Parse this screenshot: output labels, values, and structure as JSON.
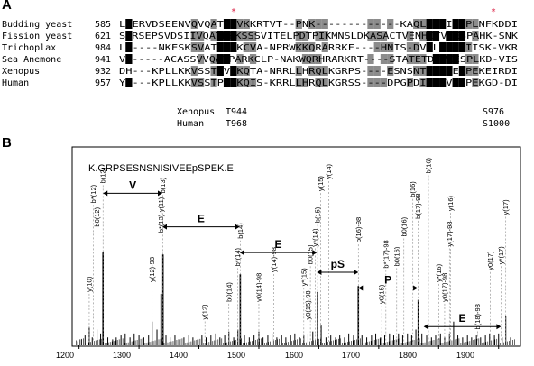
{
  "panels": {
    "a": "A",
    "b": "B"
  },
  "alignment": {
    "rows": [
      {
        "species": "Budding yeast",
        "start": "585",
        "seq": "LHERVDSEENVQVQATPAVKKRTVT--PNK-------------KAQLQSIIESPLNFKDDI"
      },
      {
        "species": "Fission yeast",
        "start": "621",
        "seq": "SKRSEPSVDSIIVQATPRKSSSVITELPDTPIKMNSLDKASACTVENHITVTESPAHK-SNK"
      },
      {
        "species": "Trichoplax",
        "start": "984",
        "seq": "LR----NKESKSVATPLKKCVA-NPRWKKQRARRKF----HNIS-DVCLRESPIISK-VKR"
      },
      {
        "species": "Sea Anemone",
        "start": "941",
        "seq": "VA-----ACASSVVQATPARKCLP-NAKWQRHRARKRT----STATETDTVKESPLKD-VIS"
      },
      {
        "species": "Xenopus",
        "start": "932",
        "seq": "DH---KPLLKKVSSTPVHKQTA-NRRLLHRQLKGRPS----ESNSNTSTVVESPEKEIRDI"
      },
      {
        "species": "Human",
        "start": "957",
        "seq": "YH---KPLLKKVSSTPVHKQIS-KRRLLHRQLKGRSS----DPGPDIDVVVESPEKGD-DI"
      }
    ],
    "stars": [
      "*",
      "*"
    ],
    "sites": [
      {
        "species": "Xenopus",
        "site1": "T944",
        "site2": "S976"
      },
      {
        "species": "Human",
        "site1": "T968",
        "site2": "S1000"
      }
    ]
  },
  "spectrum": {
    "peptide": "K.GRPSESNSNISIVEEpSPEK.E",
    "xticks": [
      "1200",
      "1300",
      "1400",
      "1500",
      "1600",
      "1700",
      "1800",
      "1900"
    ],
    "gaps": [
      {
        "label": "V",
        "from": 1240,
        "to": 1339,
        "y": 0.77
      },
      {
        "label": "E",
        "from": 1339,
        "to": 1468,
        "y": 0.6
      },
      {
        "label": "E",
        "from": 1468,
        "to": 1597,
        "y": 0.47
      },
      {
        "label": "pS",
        "from": 1597,
        "to": 1666,
        "y": 0.37
      },
      {
        "label": "P",
        "from": 1666,
        "to": 1765,
        "y": 0.29
      },
      {
        "label": "E",
        "from": 1775,
        "to": 1904,
        "y": 0.095
      }
    ]
  },
  "chart_data": {
    "type": "bar",
    "title": "K.GRPSESNSNISIVEEpSPEK.E",
    "xlabel": "",
    "ylabel": "",
    "xlim": [
      1190,
      1935
    ],
    "series": [
      {
        "name": "",
        "points": [
          {
            "x": 1198,
            "y": 0.02,
            "label": ""
          },
          {
            "x": 1204,
            "y": 0.03,
            "label": ""
          },
          {
            "x": 1210,
            "y": 0.05,
            "label": ""
          },
          {
            "x": 1217,
            "y": 0.09,
            "label": "y(10)"
          },
          {
            "x": 1222,
            "y": 0.04,
            "label": ""
          },
          {
            "x": 1230,
            "y": 0.08,
            "label": "b0(12)"
          },
          {
            "x": 1236,
            "y": 0.06,
            "label": ""
          },
          {
            "x": 1240,
            "y": 0.47,
            "label": "b(12)"
          },
          {
            "x": 1248,
            "y": 0.04,
            "label": ""
          },
          {
            "x": 1256,
            "y": 0.03,
            "label": ""
          },
          {
            "x": 1262,
            "y": 0.04,
            "label": ""
          },
          {
            "x": 1270,
            "y": 0.05,
            "label": ""
          },
          {
            "x": 1277,
            "y": 0.06,
            "label": ""
          },
          {
            "x": 1285,
            "y": 0.04,
            "label": ""
          },
          {
            "x": 1292,
            "y": 0.06,
            "label": ""
          },
          {
            "x": 1300,
            "y": 0.05,
            "label": ""
          },
          {
            "x": 1308,
            "y": 0.04,
            "label": ""
          },
          {
            "x": 1316,
            "y": 0.05,
            "label": ""
          },
          {
            "x": 1322,
            "y": 0.12,
            "label": "y(12)-98"
          },
          {
            "x": 1330,
            "y": 0.08,
            "label": ""
          },
          {
            "x": 1337,
            "y": 0.26,
            "label": "b*(13)"
          },
          {
            "x": 1340,
            "y": 0.46,
            "label": "b(13)"
          },
          {
            "x": 1345,
            "y": 0.05,
            "label": ""
          },
          {
            "x": 1352,
            "y": 0.04,
            "label": ""
          },
          {
            "x": 1360,
            "y": 0.05,
            "label": ""
          },
          {
            "x": 1368,
            "y": 0.03,
            "label": ""
          },
          {
            "x": 1375,
            "y": 0.04,
            "label": ""
          },
          {
            "x": 1383,
            "y": 0.05,
            "label": ""
          },
          {
            "x": 1390,
            "y": 0.04,
            "label": ""
          },
          {
            "x": 1398,
            "y": 0.03,
            "label": ""
          },
          {
            "x": 1405,
            "y": 0.05,
            "label": ""
          },
          {
            "x": 1412,
            "y": 0.04,
            "label": ""
          },
          {
            "x": 1420,
            "y": 0.05,
            "label": ""
          },
          {
            "x": 1428,
            "y": 0.06,
            "label": ""
          },
          {
            "x": 1435,
            "y": 0.04,
            "label": ""
          },
          {
            "x": 1443,
            "y": 0.05,
            "label": ""
          },
          {
            "x": 1450,
            "y": 0.07,
            "label": "b0(14)"
          },
          {
            "x": 1458,
            "y": 0.04,
            "label": ""
          },
          {
            "x": 1465,
            "y": 0.08,
            "label": "b*(14)"
          },
          {
            "x": 1469,
            "y": 0.36,
            "label": "b(14)"
          },
          {
            "x": 1476,
            "y": 0.05,
            "label": ""
          },
          {
            "x": 1484,
            "y": 0.04,
            "label": ""
          },
          {
            "x": 1492,
            "y": 0.05,
            "label": ""
          },
          {
            "x": 1500,
            "y": 0.07,
            "label": "y0(14)-98"
          },
          {
            "x": 1507,
            "y": 0.04,
            "label": ""
          },
          {
            "x": 1515,
            "y": 0.05,
            "label": ""
          },
          {
            "x": 1522,
            "y": 0.06,
            "label": ""
          },
          {
            "x": 1530,
            "y": 0.04,
            "label": ""
          },
          {
            "x": 1538,
            "y": 0.05,
            "label": ""
          },
          {
            "x": 1545,
            "y": 0.04,
            "label": ""
          },
          {
            "x": 1553,
            "y": 0.05,
            "label": ""
          },
          {
            "x": 1560,
            "y": 0.06,
            "label": ""
          },
          {
            "x": 1568,
            "y": 0.04,
            "label": ""
          },
          {
            "x": 1575,
            "y": 0.05,
            "label": ""
          },
          {
            "x": 1582,
            "y": 0.06,
            "label": "y0(15)-98"
          },
          {
            "x": 1590,
            "y": 0.07,
            "label": ""
          },
          {
            "x": 1598,
            "y": 0.27,
            "label": "b(15)"
          },
          {
            "x": 1604,
            "y": 0.1,
            "label": ""
          },
          {
            "x": 1612,
            "y": 0.04,
            "label": ""
          },
          {
            "x": 1620,
            "y": 0.05,
            "label": ""
          },
          {
            "x": 1628,
            "y": 0.04,
            "label": ""
          },
          {
            "x": 1635,
            "y": 0.05,
            "label": ""
          },
          {
            "x": 1643,
            "y": 0.04,
            "label": ""
          },
          {
            "x": 1650,
            "y": 0.06,
            "label": ""
          },
          {
            "x": 1658,
            "y": 0.05,
            "label": ""
          },
          {
            "x": 1666,
            "y": 0.3,
            "label": "b(16)-98"
          },
          {
            "x": 1672,
            "y": 0.05,
            "label": ""
          },
          {
            "x": 1680,
            "y": 0.04,
            "label": ""
          },
          {
            "x": 1688,
            "y": 0.05,
            "label": ""
          },
          {
            "x": 1695,
            "y": 0.06,
            "label": ""
          },
          {
            "x": 1703,
            "y": 0.04,
            "label": ""
          },
          {
            "x": 1710,
            "y": 0.05,
            "label": ""
          },
          {
            "x": 1718,
            "y": 0.06,
            "label": ""
          },
          {
            "x": 1725,
            "y": 0.05,
            "label": ""
          },
          {
            "x": 1733,
            "y": 0.06,
            "label": ""
          },
          {
            "x": 1740,
            "y": 0.05,
            "label": ""
          },
          {
            "x": 1748,
            "y": 0.06,
            "label": ""
          },
          {
            "x": 1755,
            "y": 0.05,
            "label": ""
          },
          {
            "x": 1762,
            "y": 0.08,
            "label": ""
          },
          {
            "x": 1766,
            "y": 0.23,
            "label": "b(17)-98"
          },
          {
            "x": 1772,
            "y": 0.06,
            "label": ""
          },
          {
            "x": 1780,
            "y": 0.05,
            "label": ""
          },
          {
            "x": 1788,
            "y": 0.04,
            "label": ""
          },
          {
            "x": 1795,
            "y": 0.05,
            "label": ""
          },
          {
            "x": 1803,
            "y": 0.06,
            "label": ""
          },
          {
            "x": 1810,
            "y": 0.04,
            "label": ""
          },
          {
            "x": 1818,
            "y": 0.06,
            "label": ""
          },
          {
            "x": 1825,
            "y": 0.12,
            "label": ""
          },
          {
            "x": 1832,
            "y": 0.05,
            "label": ""
          },
          {
            "x": 1840,
            "y": 0.04,
            "label": ""
          },
          {
            "x": 1848,
            "y": 0.05,
            "label": ""
          },
          {
            "x": 1855,
            "y": 0.04,
            "label": ""
          },
          {
            "x": 1863,
            "y": 0.05,
            "label": ""
          },
          {
            "x": 1870,
            "y": 0.04,
            "label": ""
          },
          {
            "x": 1878,
            "y": 0.05,
            "label": ""
          },
          {
            "x": 1885,
            "y": 0.06,
            "label": ""
          },
          {
            "x": 1893,
            "y": 0.05,
            "label": ""
          },
          {
            "x": 1900,
            "y": 0.06,
            "label": ""
          },
          {
            "x": 1906,
            "y": 0.04,
            "label": ""
          },
          {
            "x": 1912,
            "y": 0.15,
            "label": ""
          },
          {
            "x": 1920,
            "y": 0.04,
            "label": ""
          }
        ]
      }
    ],
    "annotations": [
      {
        "text": "y(10)",
        "x": 1217,
        "y": 0.27
      },
      {
        "text": "b0(12)",
        "x": 1230,
        "y": 0.6
      },
      {
        "text": "b(12)",
        "x": 1240,
        "y": 0.82
      },
      {
        "text": "b*(12)",
        "x": 1224,
        "y": 0.72
      },
      {
        "text": "y(12)-98",
        "x": 1322,
        "y": 0.32
      },
      {
        "text": "b*(13)-y(11)",
        "x": 1337,
        "y": 0.57
      },
      {
        "text": "b(13)",
        "x": 1340,
        "y": 0.77
      },
      {
        "text": "y(12)",
        "x": 1410,
        "y": 0.13
      },
      {
        "text": "b0(14)",
        "x": 1450,
        "y": 0.22
      },
      {
        "text": "b*(14)",
        "x": 1465,
        "y": 0.4
      },
      {
        "text": "b(14)",
        "x": 1469,
        "y": 0.54
      },
      {
        "text": "y(14)-98",
        "x": 1525,
        "y": 0.37
      },
      {
        "text": "y0(14)-98",
        "x": 1500,
        "y": 0.22
      },
      {
        "text": "b0(15)",
        "x": 1586,
        "y": 0.41
      },
      {
        "text": "y*(15)",
        "x": 1575,
        "y": 0.3
      },
      {
        "text": "y0(15)-98",
        "x": 1582,
        "y": 0.13
      },
      {
        "text": "y*(14)",
        "x": 1594,
        "y": 0.5
      },
      {
        "text": "b(15)",
        "x": 1598,
        "y": 0.62
      },
      {
        "text": "y(15)",
        "x": 1603,
        "y": 0.78
      },
      {
        "text": "y(14)",
        "x": 1617,
        "y": 0.84
      },
      {
        "text": "b(16)-98",
        "x": 1666,
        "y": 0.52
      },
      {
        "text": "b(17)-98",
        "x": 1766,
        "y": 0.64
      },
      {
        "text": "b(16)",
        "x": 1757,
        "y": 0.75
      },
      {
        "text": "b0(16)",
        "x": 1742,
        "y": 0.55
      },
      {
        "text": "b0(16)",
        "x": 1730,
        "y": 0.4
      },
      {
        "text": "b*(17)-98",
        "x": 1712,
        "y": 0.39
      },
      {
        "text": "b(16)",
        "x": 1783,
        "y": 0.87
      },
      {
        "text": "y0(15)",
        "x": 1705,
        "y": 0.21
      },
      {
        "text": "y(16)",
        "x": 1820,
        "y": 0.68
      },
      {
        "text": "y*(16)",
        "x": 1800,
        "y": 0.32
      },
      {
        "text": "y(17)-98",
        "x": 1818,
        "y": 0.5
      },
      {
        "text": "y0(17)-98",
        "x": 1810,
        "y": 0.22
      },
      {
        "text": "b(18)-98",
        "x": 1865,
        "y": 0.08
      },
      {
        "text": "y0(17)",
        "x": 1886,
        "y": 0.38
      },
      {
        "text": "y*(17)",
        "x": 1904,
        "y": 0.41
      },
      {
        "text": "y(17)",
        "x": 1912,
        "y": 0.66
      }
    ]
  }
}
